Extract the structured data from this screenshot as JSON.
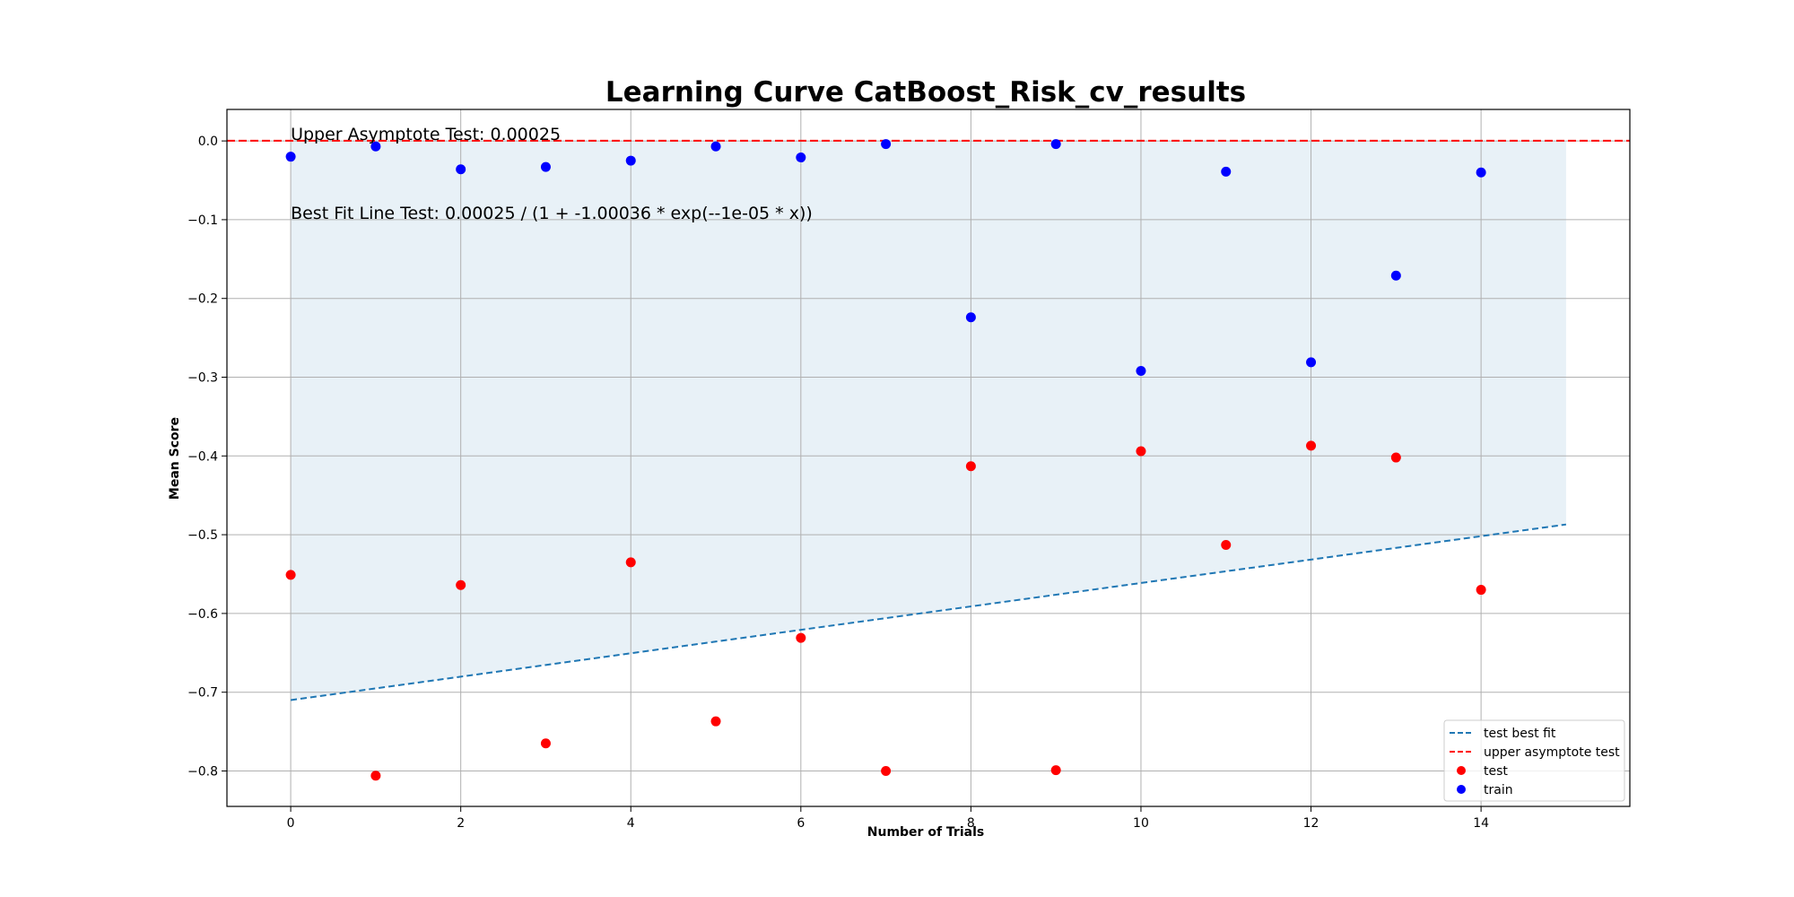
{
  "chart_data": {
    "type": "scatter",
    "title": "Learning Curve CatBoost_Risk_cv_results",
    "xlabel": "Number of Trials",
    "ylabel": "Mean Score",
    "xlim": [
      -0.75,
      15.75
    ],
    "ylim": [
      -0.845,
      0.04
    ],
    "xticks": [
      0,
      2,
      4,
      6,
      8,
      10,
      12,
      14
    ],
    "yticks": [
      0.0,
      -0.1,
      -0.2,
      -0.3,
      -0.4,
      -0.5,
      -0.6,
      -0.7,
      -0.8
    ],
    "grid": true,
    "legend_position": "lower right",
    "annotations": [
      "Upper Asymptote Test: 0.00025",
      "Best Fit Line Test: 0.00025 / (1 + -1.00036 * exp(--1e-05 * x))"
    ],
    "series": [
      {
        "name": "test",
        "kind": "scatter",
        "color": "#ff0000",
        "x": [
          0,
          1,
          2,
          3,
          4,
          5,
          6,
          7,
          8,
          9,
          10,
          11,
          12,
          13,
          14
        ],
        "y": [
          -0.551,
          -0.806,
          -0.564,
          -0.765,
          -0.535,
          -0.737,
          -0.631,
          -0.8,
          -0.413,
          -0.799,
          -0.394,
          -0.513,
          -0.387,
          -0.402,
          -0.57
        ]
      },
      {
        "name": "train",
        "kind": "scatter",
        "color": "#0000ff",
        "x": [
          0,
          1,
          2,
          3,
          4,
          5,
          6,
          7,
          8,
          9,
          10,
          11,
          12,
          13,
          14
        ],
        "y": [
          -0.02,
          -0.007,
          -0.036,
          -0.033,
          -0.025,
          -0.007,
          -0.021,
          -0.004,
          -0.224,
          -0.004,
          -0.292,
          -0.039,
          -0.281,
          -0.171,
          -0.04
        ]
      },
      {
        "name": "test best fit",
        "kind": "line",
        "style": "dashed",
        "color": "#1f77b4",
        "x": [
          0,
          15
        ],
        "y": [
          -0.71,
          -0.487
        ]
      },
      {
        "name": "upper asymptote test",
        "kind": "hline",
        "style": "dashed",
        "color": "#ff0000",
        "y": 0.00025
      }
    ],
    "shaded_band": {
      "color": "#1f77b4",
      "opacity": 0.1,
      "x": [
        0,
        15
      ],
      "upper": [
        0.00025,
        0.00025
      ],
      "lower": [
        -0.71,
        -0.487
      ]
    },
    "legend": [
      "test best fit",
      "upper asymptote test",
      "test",
      "train"
    ]
  }
}
